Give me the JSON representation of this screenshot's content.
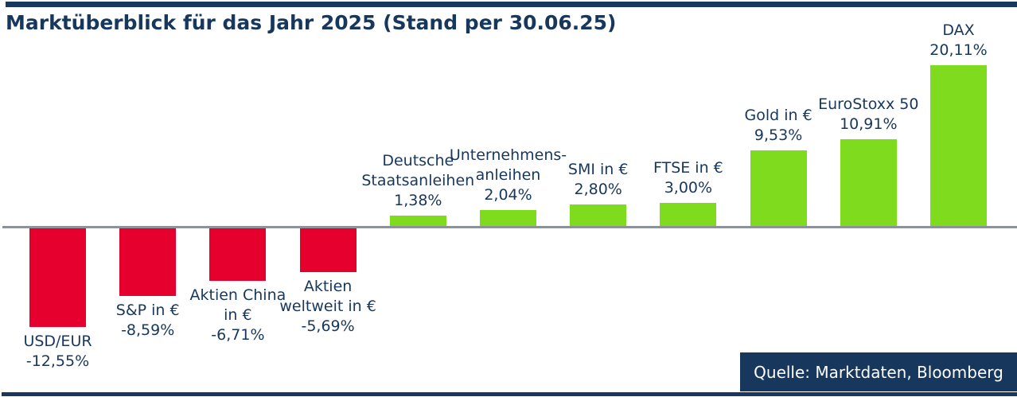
{
  "page": {
    "title": "Marktüberblick für das Jahr 2025 (Stand per 30.06.25)",
    "source_label": "Quelle: Marktdaten, Bloomberg"
  },
  "colors": {
    "navy": "#17375D",
    "positive_bar": "#7EDB1E",
    "negative_bar": "#E6002D",
    "axis_gray": "#8D919A",
    "source_text": "#FFFFFF"
  },
  "chart_data": {
    "type": "bar",
    "title": "Marktüberblick für das Jahr 2025 (Stand per 30.06.25)",
    "xlabel": "",
    "ylabel": "",
    "unit": "%",
    "baseline": 0,
    "grid": false,
    "legend": false,
    "ylim": [
      -13,
      21
    ],
    "categories": [
      "USD/EUR",
      "S&P in €",
      "Aktien China in €",
      "Aktien weltweit in €",
      "Deutsche Staatsanleihen",
      "Unternehmens-anleihen",
      "SMI in €",
      "FTSE in €",
      "Gold in €",
      "EuroStoxx 50",
      "DAX"
    ],
    "values": [
      -12.55,
      -8.59,
      -6.71,
      -5.69,
      1.38,
      2.04,
      2.8,
      3.0,
      9.53,
      10.91,
      20.11
    ],
    "value_labels": [
      "-12,55%",
      "-8,59%",
      "-6,71%",
      "-5,69%",
      "1,38%",
      "2,04%",
      "2,80%",
      "3,00%",
      "9,53%",
      "10,91%",
      "20,11%"
    ],
    "label_lines": [
      [
        "USD/EUR",
        "-12,55%"
      ],
      [
        "S&P in €",
        "-8,59%"
      ],
      [
        "Aktien China",
        "in €",
        "-6,71%"
      ],
      [
        "Aktien",
        "weltweit in €",
        "-5,69%"
      ],
      [
        "Deutsche",
        "Staatsanleihen",
        "1,38%"
      ],
      [
        "Unternehmens-",
        "anleihen",
        "2,04%"
      ],
      [
        "SMI in €",
        "2,80%"
      ],
      [
        "FTSE in €",
        "3,00%"
      ],
      [
        "Gold in €",
        "9,53%"
      ],
      [
        "EuroStoxx 50",
        "10,91%"
      ],
      [
        "DAX",
        "20,11%"
      ]
    ],
    "source": "Quelle: Marktdaten, Bloomberg"
  }
}
